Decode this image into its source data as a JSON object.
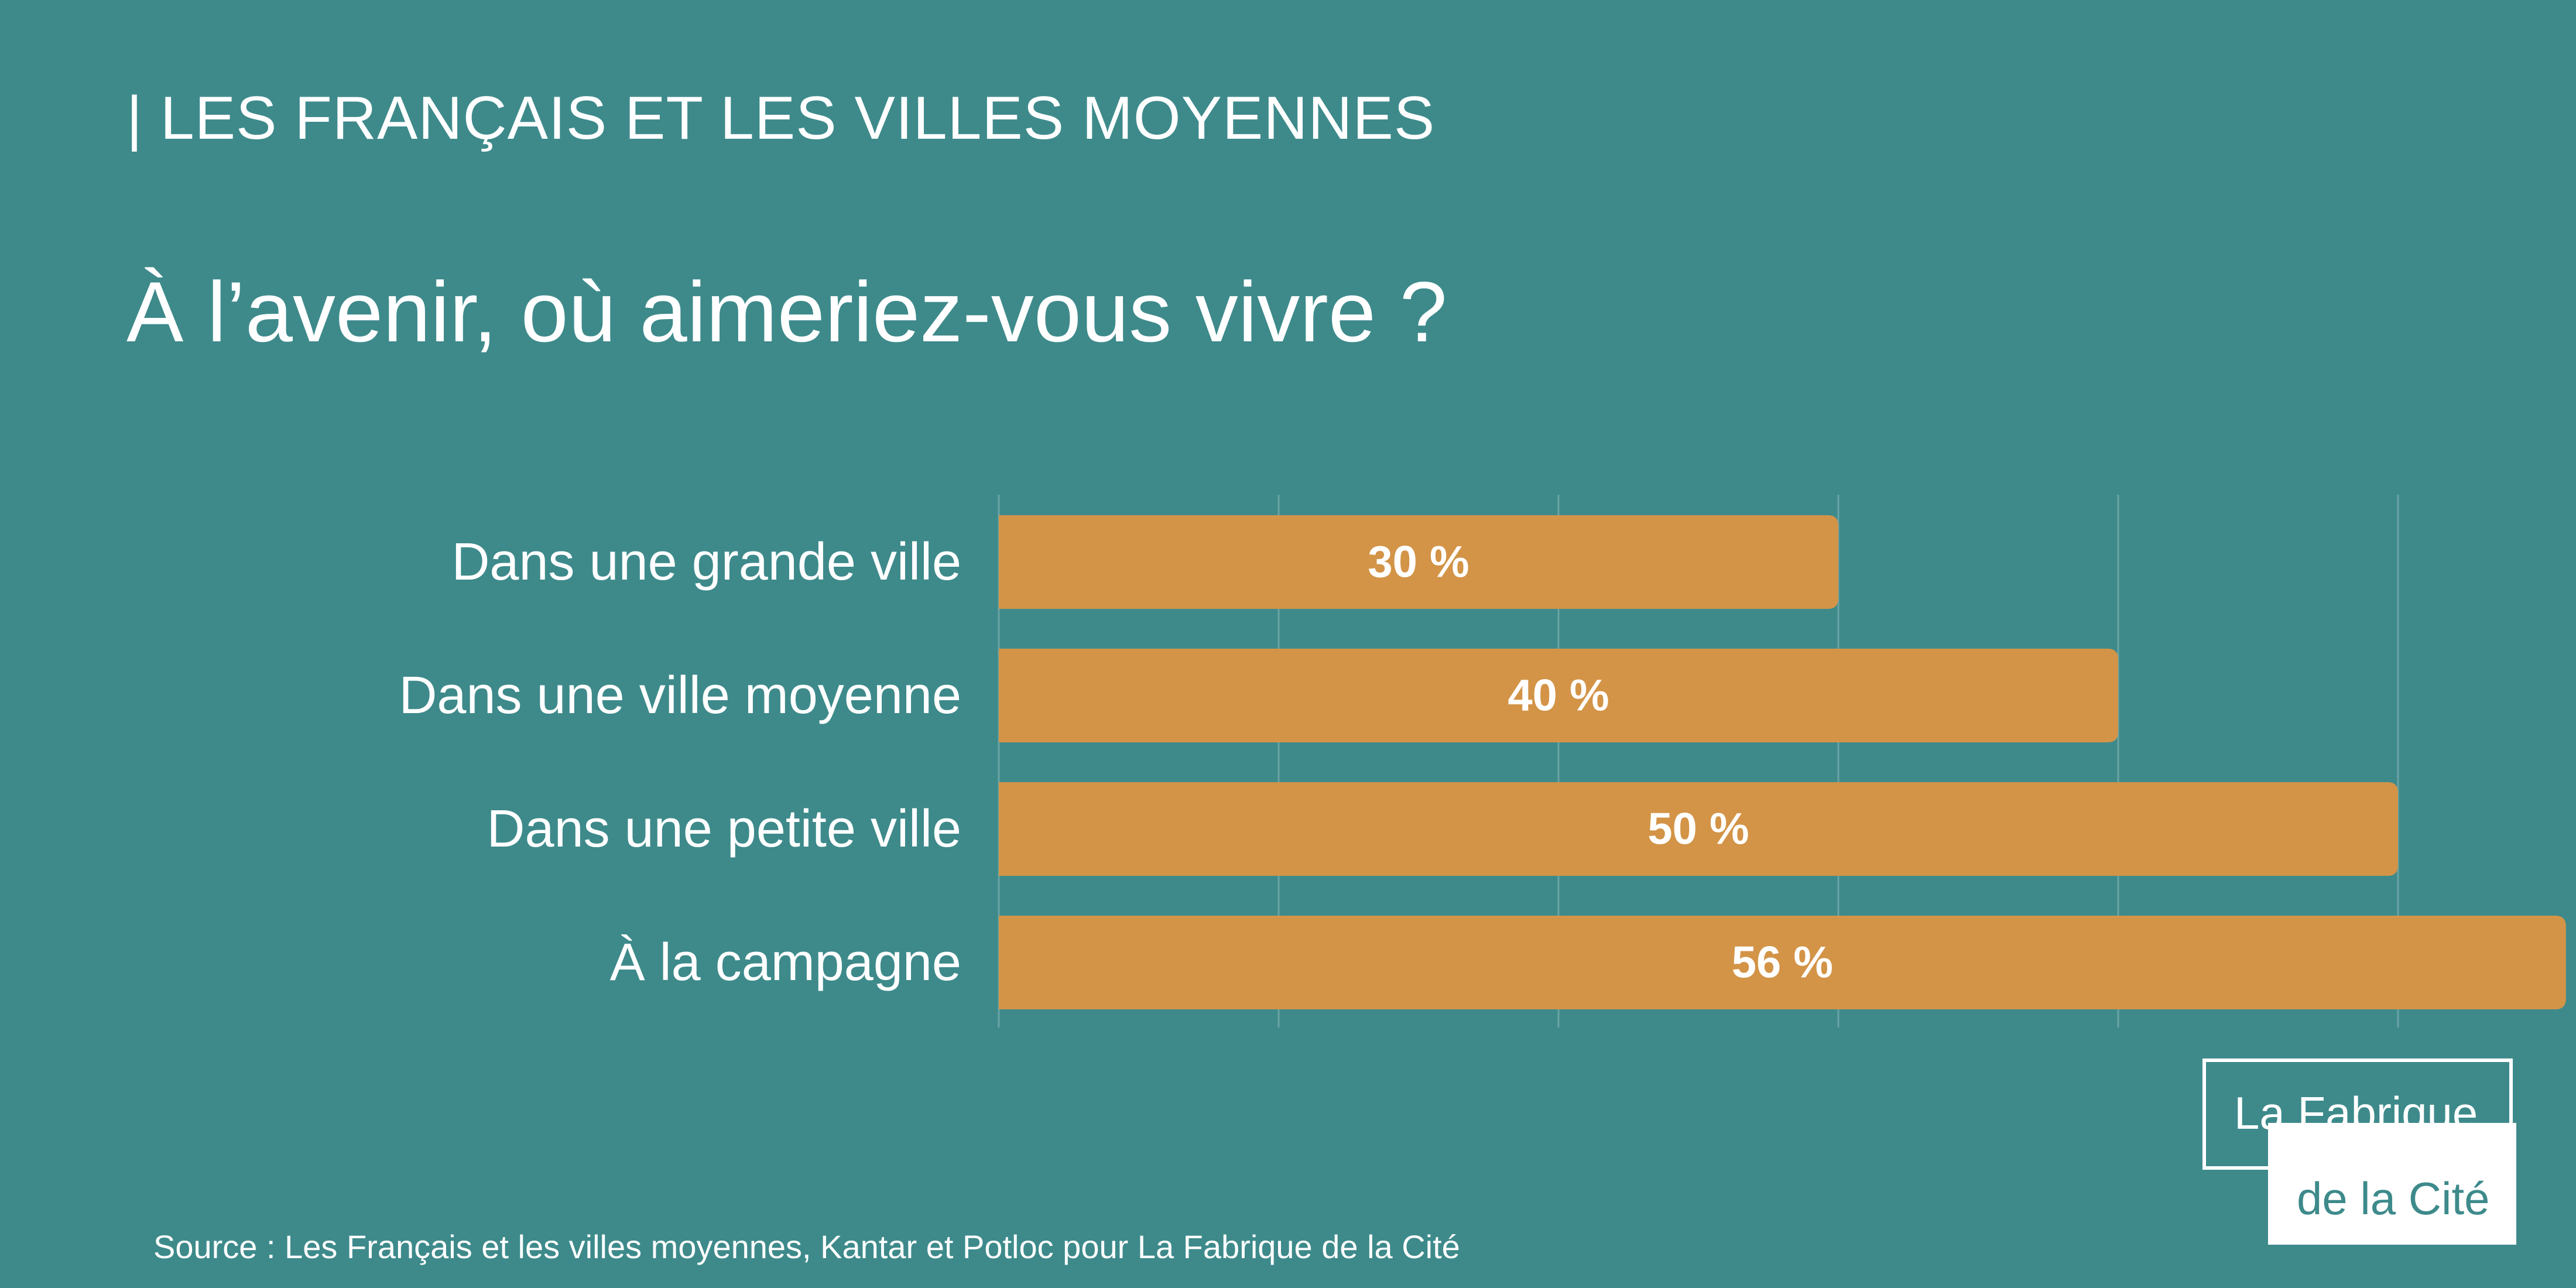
{
  "header": {
    "kicker": "| LES FRANÇAIS ET LES VILLES MOYENNES",
    "title": "À l’avenir, où aimeriez-vous vivre ?"
  },
  "chart_data": {
    "type": "bar",
    "orientation": "horizontal",
    "title": "À l’avenir, où aimeriez-vous vivre ?",
    "categories": [
      "Dans une grande ville",
      "Dans une ville moyenne",
      "Dans une petite ville",
      "À la campagne"
    ],
    "values": [
      30,
      40,
      50,
      56
    ],
    "value_labels": [
      "30 %",
      "40 %",
      "50 %",
      "56 %"
    ],
    "xlim": [
      0,
      60
    ],
    "unit": "%",
    "grid": true,
    "legend": "none",
    "colors": {
      "bar": "#d39447",
      "grid": "#6aa3a4",
      "background": "#3e8a8b",
      "text": "#ffffff"
    }
  },
  "footer": {
    "source": "Source : Les Français et les villes moyennes, Kantar et Potloc pour La Fabrique de la Cité"
  },
  "logo": {
    "line1": "La Fabrique",
    "line2": "de la Cité"
  }
}
